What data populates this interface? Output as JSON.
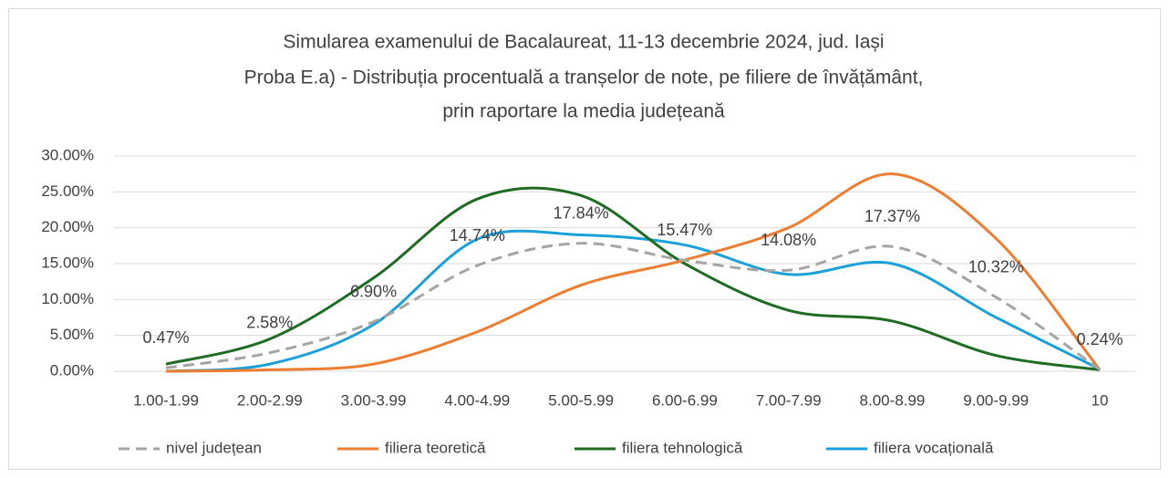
{
  "chart_data": {
    "type": "line",
    "title": [
      "Simularea examenului de Bacalaureat, 11-13 decembrie 2024, jud. Iași",
      "Proba E.a) - Distribuția procentuală a tranșelor de note, pe filiere de învățământ,",
      "prin raportare la media județeană"
    ],
    "categories": [
      "1.00-1.99",
      "2.00-2.99",
      "3.00-3.99",
      "4.00-4.99",
      "5.00-5.99",
      "6.00-6.99",
      "7.00-7.99",
      "8.00-8.99",
      "9.00-9.99",
      "10"
    ],
    "series": [
      {
        "name": "nivel județean",
        "color": "#a5a5a5",
        "dashed": true,
        "values": [
          0.47,
          2.58,
          6.9,
          14.74,
          17.84,
          15.47,
          14.08,
          17.37,
          10.32,
          0.24
        ],
        "value_labels": [
          "0.47%",
          "2.58%",
          "6.90%",
          "14.74%",
          "17.84%",
          "15.47%",
          "14.08%",
          "17.37%",
          "10.32%",
          "0.24%"
        ]
      },
      {
        "name": "filiera teoretică",
        "color": "#ed7d31",
        "values": [
          0.0,
          0.2,
          1.0,
          5.5,
          12.0,
          15.5,
          20.0,
          27.5,
          18.5,
          0.2
        ]
      },
      {
        "name": "filiera tehnologică",
        "color": "#1e6b23",
        "values": [
          1.0,
          4.5,
          13.0,
          24.0,
          24.5,
          15.0,
          8.5,
          7.0,
          2.2,
          0.2
        ]
      },
      {
        "name": "filiera vocațională",
        "color": "#1ba1d8",
        "values": [
          0.0,
          1.0,
          6.5,
          18.4,
          19.0,
          17.6,
          13.5,
          15.0,
          7.5,
          0.3
        ]
      }
    ],
    "ylim": [
      0,
      30
    ],
    "yticks": [
      {
        "value": 0,
        "label": "0.00%"
      },
      {
        "value": 5,
        "label": "5.00%"
      },
      {
        "value": 10,
        "label": "10.00%"
      },
      {
        "value": 15,
        "label": "15.00%"
      },
      {
        "value": 20,
        "label": "20.00%"
      },
      {
        "value": 25,
        "label": "25.00%"
      },
      {
        "value": 30,
        "label": "30.00%"
      }
    ],
    "grid": true,
    "legend": "bottom"
  }
}
